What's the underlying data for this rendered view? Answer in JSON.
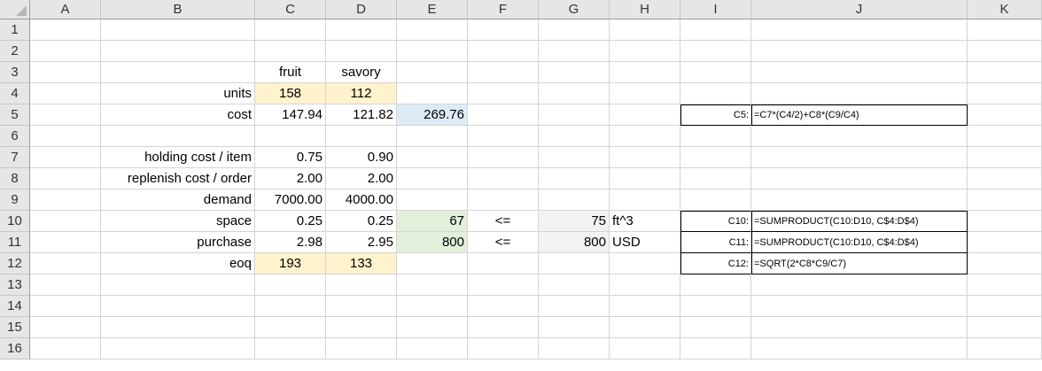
{
  "columns": [
    "A",
    "B",
    "C",
    "D",
    "E",
    "F",
    "G",
    "H",
    "I",
    "J",
    "K"
  ],
  "rows": [
    "1",
    "2",
    "3",
    "4",
    "5",
    "6",
    "7",
    "8",
    "9",
    "10",
    "11",
    "12",
    "13",
    "14",
    "15",
    "16"
  ],
  "cells": {
    "C3": "fruit",
    "D3": "savory",
    "B4": "units",
    "C4": "158",
    "D4": "112",
    "B5": "cost",
    "C5": "147.94",
    "D5": "121.82",
    "E5": "269.76",
    "I5": "C5:",
    "J5": "=C7*(C4/2)+C8*(C9/C4)",
    "B7": "holding cost / item",
    "C7": "0.75",
    "D7": "0.90",
    "B8": "replenish cost / order",
    "C8": "2.00",
    "D8": "2.00",
    "B9": "demand",
    "C9": "7000.00",
    "D9": "4000.00",
    "B10": "space",
    "C10": "0.25",
    "D10": "0.25",
    "E10": "67",
    "F10": "<=",
    "G10": "75",
    "H10": "ft^3",
    "I10": "C10:",
    "J10": "=SUMPRODUCT(C10:D10, C$4:D$4)",
    "B11": "purchase",
    "C11": "2.98",
    "D11": "2.95",
    "E11": "800",
    "F11": "<=",
    "G11": "800",
    "H11": "USD",
    "I11": "C11:",
    "J11": "=SUMPRODUCT(C10:D10, C$4:D$4)",
    "B12": "eoq",
    "C12": "193",
    "D12": "133",
    "I12": "C12:",
    "J12": "=SQRT(2*C8*C9/C7)"
  },
  "fills": {
    "input_yellow": "#fff2cc",
    "output_blue": "#ddebf7",
    "constraint_green": "#e2efda",
    "limit_gray": "#f2f2f2"
  }
}
